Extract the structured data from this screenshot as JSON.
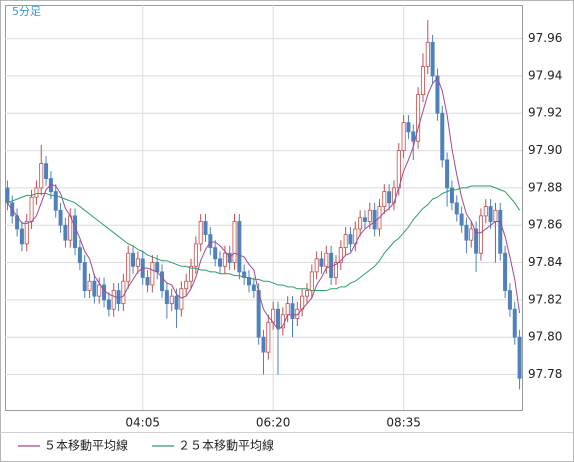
{
  "chart_data": {
    "type": "candlestick",
    "title": "5分足",
    "categories": [
      null,
      null,
      null,
      null,
      null,
      null,
      null,
      null,
      null,
      null,
      null,
      null,
      null,
      null,
      null,
      null,
      null,
      null,
      null,
      null,
      null,
      null,
      null,
      null,
      null,
      null,
      null,
      null,
      "04:05",
      null,
      null,
      null,
      null,
      null,
      null,
      null,
      null,
      null,
      null,
      null,
      null,
      null,
      null,
      null,
      null,
      null,
      null,
      null,
      null,
      null,
      null,
      null,
      null,
      null,
      null,
      "06:20",
      null,
      null,
      null,
      null,
      null,
      null,
      null,
      null,
      null,
      null,
      null,
      null,
      null,
      null,
      null,
      null,
      null,
      null,
      null,
      null,
      null,
      null,
      null,
      null,
      null,
      null,
      "08:35",
      null,
      null,
      null,
      null,
      null,
      null,
      null,
      null,
      null,
      null,
      null,
      null,
      null,
      null,
      null,
      null,
      null,
      null,
      null,
      null,
      null,
      null,
      null,
      null
    ],
    "open": [
      97.88,
      97.872,
      97.865,
      97.858,
      97.85,
      97.862,
      97.875,
      97.88,
      97.893,
      97.885,
      97.878,
      97.868,
      97.86,
      97.852,
      97.865,
      97.848,
      97.84,
      97.825,
      97.83,
      97.822,
      97.828,
      97.82,
      97.815,
      97.825,
      97.818,
      97.83,
      97.845,
      97.838,
      97.842,
      97.832,
      97.828,
      97.84,
      97.835,
      97.825,
      97.818,
      97.822,
      97.815,
      97.826,
      97.83,
      97.838,
      97.85,
      97.862,
      97.855,
      97.848,
      97.842,
      97.838,
      97.845,
      97.84,
      97.862,
      97.835,
      97.832,
      97.828,
      97.825,
      97.8,
      97.792,
      97.808,
      97.815,
      97.805,
      97.812,
      97.818,
      97.81,
      97.815,
      97.822,
      97.825,
      97.835,
      97.842,
      97.838,
      97.845,
      97.832,
      97.84,
      97.848,
      97.855,
      97.85,
      97.858,
      97.864,
      97.862,
      97.868,
      97.858,
      97.87,
      97.878,
      97.872,
      97.88,
      97.9,
      97.915,
      97.91,
      97.905,
      97.93,
      97.945,
      97.958,
      97.94,
      97.92,
      97.895,
      97.88,
      97.872,
      97.866,
      97.86,
      97.852,
      97.858,
      97.845,
      97.865,
      97.87,
      97.862,
      97.868,
      97.845,
      97.825,
      97.815,
      97.8
    ],
    "high": [
      97.884,
      97.876,
      97.869,
      97.862,
      97.866,
      97.879,
      97.884,
      97.903,
      97.897,
      97.889,
      97.882,
      97.872,
      97.864,
      97.869,
      97.869,
      97.852,
      97.844,
      97.834,
      97.834,
      97.832,
      97.832,
      97.824,
      97.829,
      97.829,
      97.834,
      97.849,
      97.849,
      97.846,
      97.846,
      97.836,
      97.844,
      97.844,
      97.839,
      97.829,
      97.826,
      97.826,
      97.83,
      97.834,
      97.842,
      97.854,
      97.866,
      97.866,
      97.859,
      97.852,
      97.846,
      97.849,
      97.849,
      97.866,
      97.866,
      97.839,
      97.836,
      97.832,
      97.829,
      97.804,
      97.812,
      97.819,
      97.819,
      97.816,
      97.822,
      97.822,
      97.819,
      97.826,
      97.829,
      97.839,
      97.846,
      97.846,
      97.849,
      97.849,
      97.844,
      97.852,
      97.859,
      97.859,
      97.862,
      97.868,
      97.868,
      97.872,
      97.872,
      97.874,
      97.882,
      97.882,
      97.884,
      97.904,
      97.919,
      97.919,
      97.914,
      97.934,
      97.952,
      97.97,
      97.962,
      97.944,
      97.924,
      97.899,
      97.884,
      97.876,
      97.87,
      97.864,
      97.862,
      97.862,
      97.869,
      97.874,
      97.874,
      97.872,
      97.872,
      97.849,
      97.829,
      97.819,
      97.804
    ],
    "low": [
      97.868,
      97.861,
      97.854,
      97.846,
      97.846,
      97.858,
      97.871,
      97.876,
      97.881,
      97.874,
      97.864,
      97.856,
      97.848,
      97.848,
      97.844,
      97.836,
      97.821,
      97.821,
      97.818,
      97.818,
      97.816,
      97.811,
      97.811,
      97.814,
      97.814,
      97.826,
      97.834,
      97.834,
      97.828,
      97.824,
      97.824,
      97.831,
      97.821,
      97.81,
      97.814,
      97.805,
      97.811,
      97.822,
      97.826,
      97.834,
      97.846,
      97.851,
      97.844,
      97.838,
      97.834,
      97.834,
      97.836,
      97.836,
      97.831,
      97.828,
      97.824,
      97.821,
      97.796,
      97.78,
      97.788,
      97.804,
      97.78,
      97.801,
      97.808,
      97.8,
      97.806,
      97.811,
      97.818,
      97.821,
      97.831,
      97.834,
      97.834,
      97.828,
      97.828,
      97.836,
      97.844,
      97.846,
      97.846,
      97.854,
      97.858,
      97.858,
      97.854,
      97.854,
      97.866,
      97.868,
      97.868,
      97.876,
      97.896,
      97.906,
      97.895,
      97.901,
      97.926,
      97.941,
      97.936,
      97.916,
      97.891,
      97.87,
      97.868,
      97.862,
      97.856,
      97.845,
      97.848,
      97.835,
      97.841,
      97.861,
      97.858,
      97.84,
      97.841,
      97.821,
      97.811,
      97.796,
      97.772
    ],
    "close": [
      97.872,
      97.865,
      97.858,
      97.85,
      97.862,
      97.875,
      97.88,
      97.893,
      97.885,
      97.878,
      97.868,
      97.86,
      97.852,
      97.865,
      97.848,
      97.84,
      97.825,
      97.83,
      97.822,
      97.828,
      97.82,
      97.815,
      97.825,
      97.818,
      97.83,
      97.845,
      97.838,
      97.842,
      97.832,
      97.828,
      97.84,
      97.835,
      97.825,
      97.818,
      97.822,
      97.815,
      97.826,
      97.83,
      97.838,
      97.85,
      97.862,
      97.855,
      97.848,
      97.842,
      97.838,
      97.845,
      97.84,
      97.862,
      97.835,
      97.832,
      97.828,
      97.825,
      97.8,
      97.792,
      97.808,
      97.815,
      97.805,
      97.812,
      97.818,
      97.81,
      97.815,
      97.822,
      97.825,
      97.835,
      97.842,
      97.838,
      97.845,
      97.832,
      97.84,
      97.848,
      97.855,
      97.85,
      97.858,
      97.864,
      97.862,
      97.868,
      97.858,
      97.87,
      97.878,
      97.872,
      97.88,
      97.9,
      97.915,
      97.91,
      97.905,
      97.93,
      97.945,
      97.958,
      97.94,
      97.92,
      97.895,
      97.88,
      97.872,
      97.866,
      97.86,
      97.852,
      97.858,
      97.845,
      97.865,
      97.87,
      97.862,
      97.868,
      97.845,
      97.825,
      97.815,
      97.8,
      97.778
    ],
    "up_color": "#c0504d",
    "down_color": "#4f81bd",
    "series": [
      {
        "name": "５本移動平均線",
        "color": "#a3488f",
        "values": [
          97.872,
          97.868,
          97.865,
          97.861,
          97.861,
          97.862,
          97.865,
          97.872,
          97.879,
          97.882,
          97.881,
          97.877,
          97.869,
          97.865,
          97.859,
          97.853,
          97.846,
          97.842,
          97.833,
          97.829,
          97.825,
          97.823,
          97.822,
          97.821,
          97.822,
          97.827,
          97.831,
          97.835,
          97.837,
          97.837,
          97.836,
          97.835,
          97.832,
          97.829,
          97.828,
          97.823,
          97.821,
          97.822,
          97.826,
          97.832,
          97.841,
          97.847,
          97.851,
          97.851,
          97.849,
          97.846,
          97.843,
          97.845,
          97.844,
          97.843,
          97.839,
          97.836,
          97.824,
          97.815,
          97.811,
          97.808,
          97.804,
          97.806,
          97.812,
          97.812,
          97.812,
          97.815,
          97.818,
          97.821,
          97.828,
          97.832,
          97.837,
          97.838,
          97.839,
          97.841,
          97.844,
          97.845,
          97.85,
          97.855,
          97.858,
          97.86,
          97.862,
          97.864,
          97.867,
          97.869,
          97.872,
          97.88,
          97.889,
          97.895,
          97.902,
          97.912,
          97.921,
          97.93,
          97.936,
          97.939,
          97.932,
          97.919,
          97.901,
          97.887,
          97.875,
          97.866,
          97.862,
          97.856,
          97.856,
          97.858,
          97.86,
          97.862,
          97.862,
          97.854,
          97.843,
          97.831,
          97.813
        ]
      },
      {
        "name": "２５本移動平均線",
        "color": "#2e9e6a",
        "values": [
          97.872,
          97.873,
          97.874,
          97.875,
          97.876,
          97.876,
          97.877,
          97.877,
          97.877,
          97.876,
          97.876,
          97.875,
          97.874,
          97.873,
          97.872,
          97.87,
          97.868,
          97.866,
          97.864,
          97.862,
          97.86,
          97.858,
          97.856,
          97.854,
          97.852,
          97.85,
          97.849,
          97.847,
          97.846,
          97.844,
          97.843,
          97.842,
          97.841,
          97.841,
          97.84,
          97.839,
          97.838,
          97.838,
          97.837,
          97.837,
          97.836,
          97.836,
          97.835,
          97.835,
          97.834,
          97.834,
          97.834,
          97.833,
          97.833,
          97.832,
          97.832,
          97.831,
          97.831,
          97.83,
          97.83,
          97.829,
          97.828,
          97.828,
          97.827,
          97.827,
          97.826,
          97.826,
          97.826,
          97.825,
          97.825,
          97.825,
          97.825,
          97.826,
          97.826,
          97.827,
          97.827,
          97.829,
          97.83,
          97.832,
          97.834,
          97.836,
          97.838,
          97.841,
          97.845,
          97.848,
          97.851,
          97.853,
          97.856,
          97.859,
          97.863,
          97.866,
          97.869,
          97.871,
          97.874,
          97.875,
          97.877,
          97.878,
          97.879,
          97.879,
          97.88,
          97.88,
          97.881,
          97.881,
          97.881,
          97.881,
          97.881,
          97.88,
          97.879,
          97.878,
          97.875,
          97.872,
          97.868
        ]
      }
    ],
    "ylim": [
      97.761,
      97.978
    ],
    "yticks": [
      97.78,
      {
        "value": 97.8,
        "label": "97.80"
      },
      97.82,
      97.84,
      97.86,
      97.88,
      {
        "value": 97.9,
        "label": "97.90"
      },
      97.92,
      97.94,
      97.96
    ],
    "grid": true
  }
}
